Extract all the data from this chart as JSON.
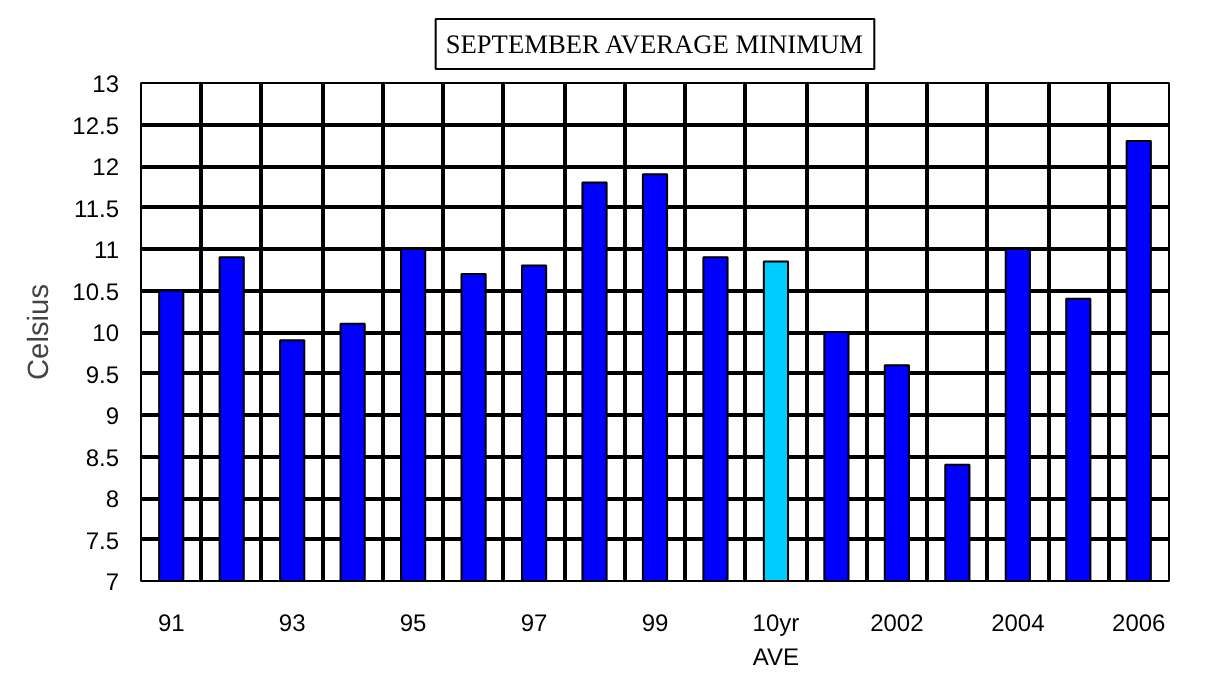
{
  "chart_data": {
    "type": "bar",
    "title": "SEPTEMBER AVERAGE MINIMUM",
    "ylabel": "Celsius",
    "categories": [
      "91",
      null,
      "93",
      null,
      "95",
      null,
      "97",
      null,
      "99",
      null,
      "10yr\nAVE",
      null,
      "2002",
      null,
      "2004",
      null,
      "2006"
    ],
    "values": [
      10.5,
      10.9,
      9.9,
      10.1,
      11.0,
      10.7,
      10.8,
      11.8,
      11.9,
      10.9,
      10.85,
      10.0,
      9.6,
      8.4,
      11.0,
      10.4,
      12.3
    ],
    "colors": [
      "#0000ff",
      "#0000ff",
      "#0000ff",
      "#0000ff",
      "#0000ff",
      "#0000ff",
      "#0000ff",
      "#0000ff",
      "#0000ff",
      "#0000ff",
      "#00ccff",
      "#0000ff",
      "#0000ff",
      "#0000ff",
      "#0000ff",
      "#0000ff",
      "#0000ff"
    ],
    "ylim": [
      7,
      13
    ],
    "yticks": [
      7,
      7.5,
      8,
      8.5,
      9,
      9.5,
      10,
      10.5,
      11,
      11.5,
      12,
      12.5,
      13
    ],
    "grid": true
  }
}
